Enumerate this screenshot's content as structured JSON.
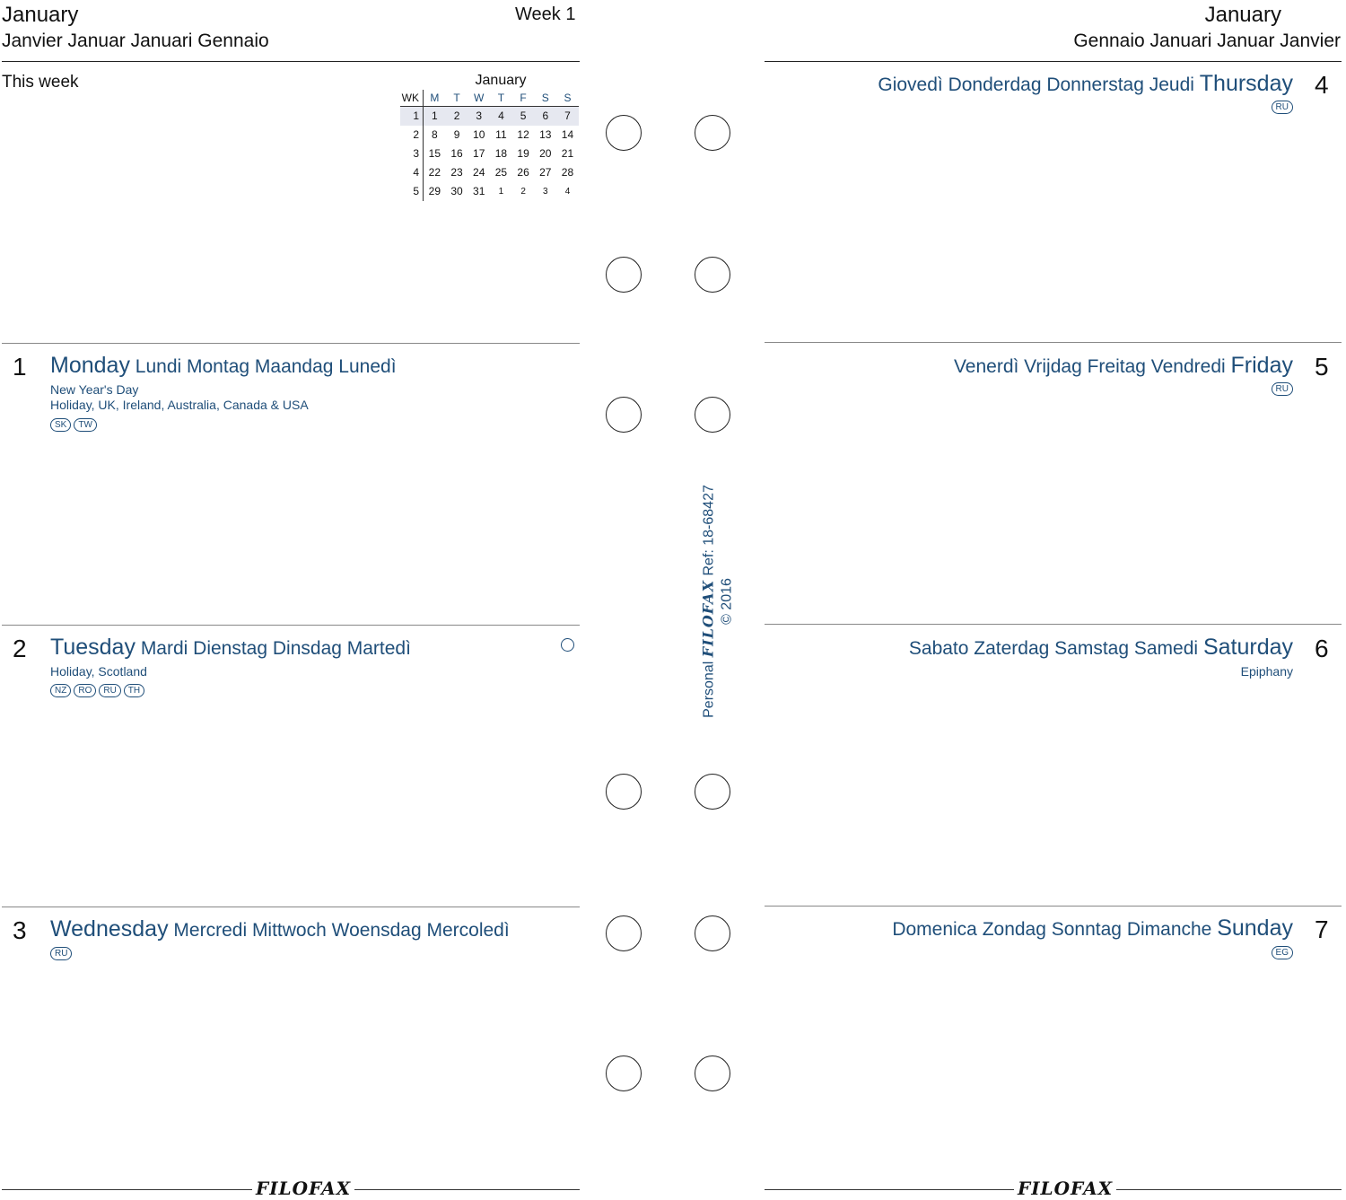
{
  "left_header": {
    "month": "January",
    "week_label": "Week 1",
    "month_translations": "Janvier Januar Januari Gennaio",
    "this_week_label": "This week"
  },
  "right_header": {
    "month": "January",
    "month_translations": "Gennaio Januari Januar Janvier"
  },
  "mini_calendar": {
    "title": "January",
    "wk_header": "WK",
    "weekday_headers": [
      "M",
      "T",
      "W",
      "T",
      "F",
      "S",
      "S"
    ],
    "weeks": [
      {
        "wk": "1",
        "days": [
          "1",
          "2",
          "3",
          "4",
          "5",
          "6",
          "7"
        ],
        "highlighted": true
      },
      {
        "wk": "2",
        "days": [
          "8",
          "9",
          "10",
          "11",
          "12",
          "13",
          "14"
        ]
      },
      {
        "wk": "3",
        "days": [
          "15",
          "16",
          "17",
          "18",
          "19",
          "20",
          "21"
        ]
      },
      {
        "wk": "4",
        "days": [
          "22",
          "23",
          "24",
          "25",
          "26",
          "27",
          "28"
        ]
      },
      {
        "wk": "5",
        "days": [
          "29",
          "30",
          "31",
          "1",
          "2",
          "3",
          "4"
        ]
      }
    ]
  },
  "days": {
    "mon": {
      "num": "1",
      "main": "Monday",
      "translations": "Lundi Montag Maandag Lunedì",
      "notes": [
        "New Year's Day",
        "Holiday, UK, Ireland, Australia, Canada & USA"
      ],
      "badges": [
        "SK",
        "TW"
      ]
    },
    "tue": {
      "num": "2",
      "main": "Tuesday",
      "translations": "Mardi Dienstag Dinsdag Martedì",
      "notes": [
        "Holiday, Scotland"
      ],
      "badges": [
        "NZ",
        "RO",
        "RU",
        "TH"
      ]
    },
    "wed": {
      "num": "3",
      "main": "Wednesday",
      "translations": "Mercredi Mittwoch Woensdag Mercoledì",
      "badges": [
        "RU"
      ]
    },
    "thu": {
      "num": "4",
      "main": "Thursday",
      "translations": "Giovedì Donderdag Donnerstag Jeudi",
      "badges": [
        "RU"
      ]
    },
    "fri": {
      "num": "5",
      "main": "Friday",
      "translations": "Venerdì Vrijdag Freitag Vendredi",
      "badges": [
        "RU"
      ]
    },
    "sat": {
      "num": "6",
      "main": "Saturday",
      "translations": "Sabato Zaterdag Samstag Samedi",
      "notes": [
        "Epiphany"
      ]
    },
    "sun": {
      "num": "7",
      "main": "Sunday",
      "translations": "Domenica Zondag Sonntag Dimanche",
      "badges": [
        "EG"
      ]
    }
  },
  "spine": {
    "personal": "Personal",
    "brand": "FILOFAX",
    "ref": "Ref: 18-68427",
    "copyright": "© 2016"
  },
  "footer": {
    "left_brand": "FILOFAX",
    "right_brand": "FILOFAX"
  },
  "colors": {
    "accent": "#1f4e79",
    "highlight": "#e6e8f0"
  }
}
